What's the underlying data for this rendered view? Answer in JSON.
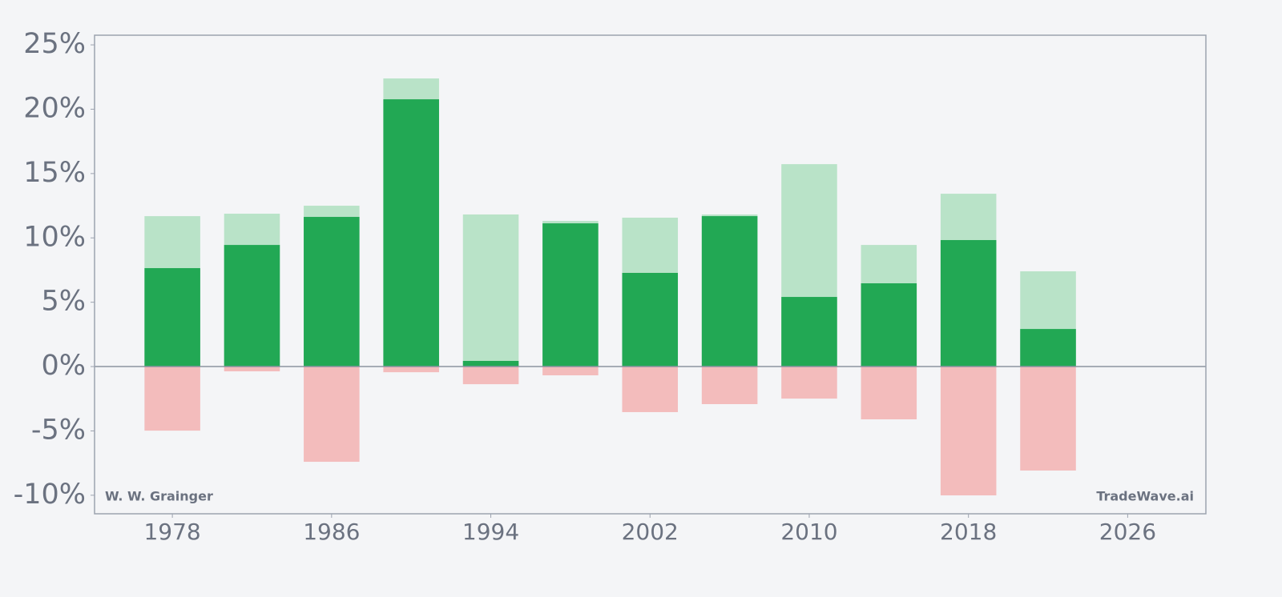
{
  "chart_data": {
    "type": "bar",
    "x": [
      1978,
      1982,
      1986,
      1990,
      1994,
      1998,
      2002,
      2006,
      2010,
      2014,
      2018,
      2022
    ],
    "series": [
      {
        "color": "#b9e3c8",
        "values": [
          11.69,
          11.88,
          12.5,
          22.39,
          11.82,
          11.32,
          11.57,
          11.82,
          15.73,
          9.45,
          13.43,
          7.4
        ]
      },
      {
        "color": "#22a854",
        "values": [
          7.65,
          9.45,
          11.63,
          20.77,
          0.44,
          11.13,
          7.28,
          11.69,
          5.41,
          6.47,
          9.83,
          2.92
        ]
      },
      {
        "color": "#f3bcbc",
        "values": [
          -4.98,
          -0.37,
          -7.4,
          -0.44,
          -1.37,
          -0.68,
          -3.54,
          -2.92,
          -2.49,
          -4.1,
          -10.01,
          -8.08
        ]
      }
    ],
    "xlim": [
      1974.09,
      2029.93
    ],
    "xticks": [
      1978,
      1986,
      1994,
      2002,
      2010,
      2018,
      2026
    ],
    "ylim": [
      -11.44,
      25.75
    ],
    "yticks": [
      {
        "value": -10,
        "label": "-10%"
      },
      {
        "value": -5,
        "label": "-5%"
      },
      {
        "value": 0,
        "label": "0%"
      },
      {
        "value": 5,
        "label": "5%"
      },
      {
        "value": 10,
        "label": "10%"
      },
      {
        "value": 15,
        "label": "15%"
      },
      {
        "value": 20,
        "label": "20%"
      },
      {
        "value": 25,
        "label": "25%"
      }
    ],
    "annotations": [
      "W. W. Grainger",
      "TradeWave.ai"
    ]
  }
}
